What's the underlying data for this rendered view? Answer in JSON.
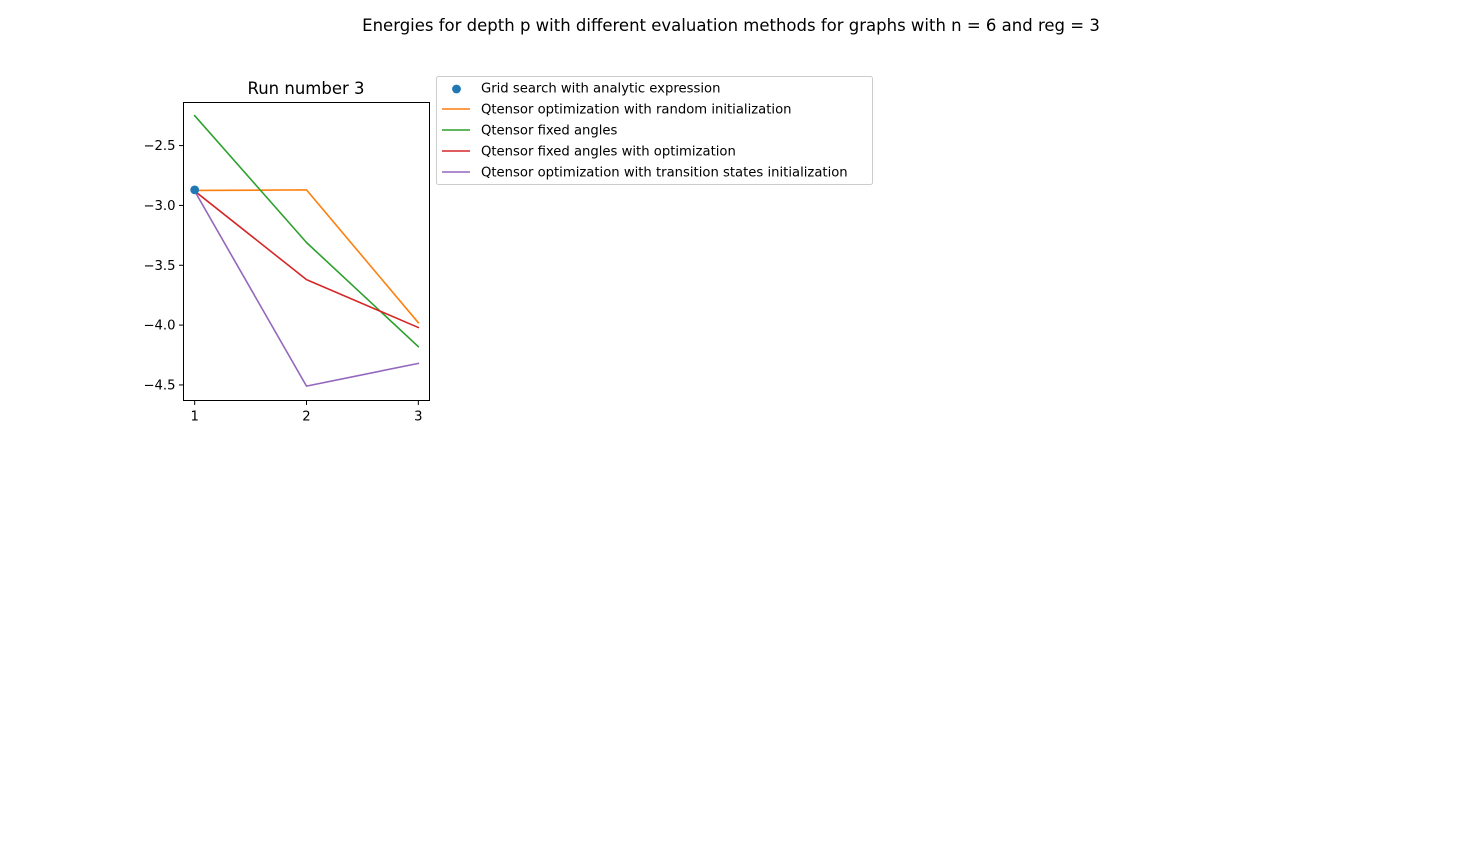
{
  "figure": {
    "title": "Energies for depth p with different evaluation methods for graphs with n = 6 and reg = 3"
  },
  "chart_data": {
    "type": "line",
    "title": "Run number 3",
    "xlabel": "",
    "ylabel": "",
    "x": [
      1,
      2,
      3
    ],
    "xticks": [
      "1",
      "2",
      "3"
    ],
    "yticks": [
      -2.5,
      -3.0,
      -3.5,
      -4.0,
      -4.5
    ],
    "ytick_labels": [
      "−2.5",
      "−3.0",
      "−3.5",
      "−4.0",
      "−4.5"
    ],
    "xlim": [
      0.9,
      3.1
    ],
    "ylim": [
      -4.63,
      -2.14
    ],
    "grid": false,
    "legend_placement": "outside-right-top",
    "series": [
      {
        "name": "Grid search with analytic expression",
        "kind": "scatter",
        "color": "#1f77b4",
        "x": [
          1
        ],
        "values": [
          -2.87
        ]
      },
      {
        "name": "Qtensor optimization with random initialization",
        "kind": "line",
        "color": "#ff7f0e",
        "x": [
          1,
          2,
          3
        ],
        "values": [
          -2.875,
          -2.87,
          -3.98
        ]
      },
      {
        "name": "Qtensor fixed angles",
        "kind": "line",
        "color": "#2ca02c",
        "x": [
          1,
          2,
          3
        ],
        "values": [
          -2.25,
          -3.31,
          -4.18
        ]
      },
      {
        "name": "Qtensor fixed angles with optimization",
        "kind": "line",
        "color": "#d62728",
        "x": [
          1,
          2,
          3
        ],
        "values": [
          -2.88,
          -3.62,
          -4.02
        ]
      },
      {
        "name": "Qtensor optimization with transition states initialization",
        "kind": "line",
        "color": "#9467bd",
        "x": [
          1,
          2,
          3
        ],
        "values": [
          -2.88,
          -4.51,
          -4.32
        ]
      }
    ]
  }
}
